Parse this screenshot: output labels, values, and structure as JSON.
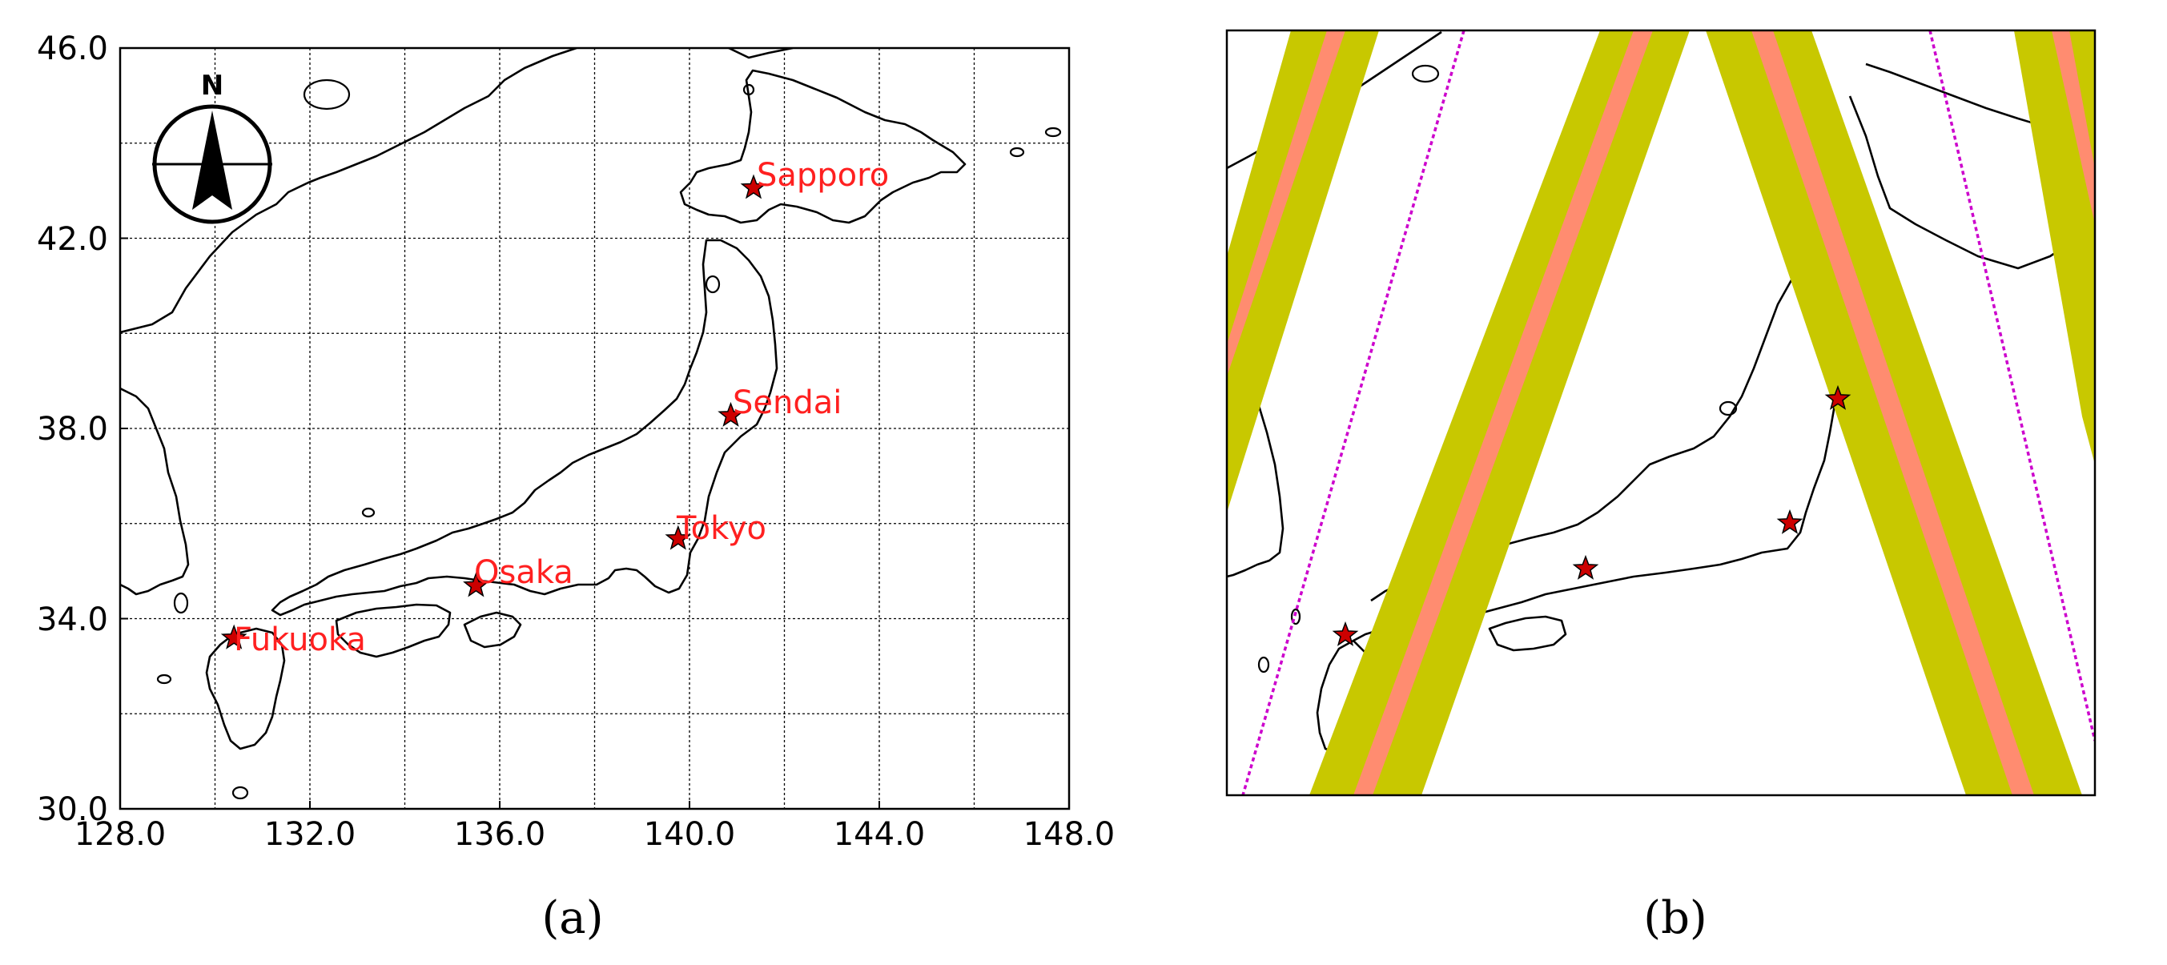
{
  "panel_a": {
    "label": "(a)",
    "x_ticks": [
      "128.0",
      "132.0",
      "136.0",
      "140.0",
      "144.0",
      "148.0"
    ],
    "y_ticks": [
      "30.0",
      "34.0",
      "38.0",
      "42.0",
      "46.0"
    ],
    "x_range": [
      128,
      148
    ],
    "y_range": [
      30,
      46
    ],
    "grid_step": 2,
    "grid": true,
    "compass_letter": "N",
    "marker_color": "#cc0000",
    "cities": [
      {
        "name": "Sapporo",
        "lon": 141.35,
        "lat": 43.06
      },
      {
        "name": "Sendai",
        "lon": 140.87,
        "lat": 38.27
      },
      {
        "name": "Tokyo",
        "lon": 139.76,
        "lat": 35.68
      },
      {
        "name": "Osaka",
        "lon": 135.5,
        "lat": 34.69
      },
      {
        "name": "Fukuoka",
        "lon": 130.4,
        "lat": 33.59
      }
    ]
  },
  "panel_b": {
    "label": "(b)",
    "swath_color": "#c8c800",
    "center_color": "#ff8c70",
    "track_color": "#cc00cc",
    "marker_color": "#cc0000"
  }
}
